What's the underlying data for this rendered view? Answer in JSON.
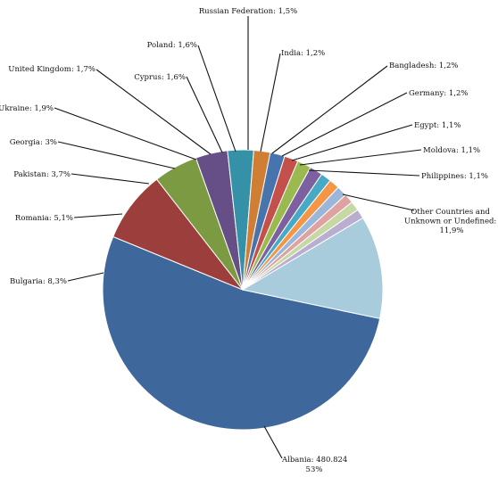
{
  "chart_data": {
    "type": "pie",
    "title": "",
    "slices": [
      {
        "label": "Albania: 480.824",
        "sublabel": "53%",
        "value": 53.0,
        "color": "#3e679b"
      },
      {
        "label": "Bulgaria: 8,3%",
        "value": 8.3,
        "color": "#9c3f3c"
      },
      {
        "label": "Romania: 5,1%",
        "value": 5.1,
        "color": "#7b9a41"
      },
      {
        "label": "Pakistan: 3,7%",
        "value": 3.7,
        "color": "#654f86"
      },
      {
        "label": "Georgia: 3%",
        "value": 3.0,
        "color": "#3591a7"
      },
      {
        "label": "Ukraine: 1,9%",
        "value": 1.9,
        "color": "#d17e35"
      },
      {
        "label": "United Kingdom: 1,7%",
        "value": 1.7,
        "color": "#4874ae"
      },
      {
        "label": "Cyprus: 1,6%",
        "value": 1.6,
        "color": "#c4504c"
      },
      {
        "label": "Poland: 1,6%",
        "value": 1.6,
        "color": "#9ab94f"
      },
      {
        "label": "Russian Federation: 1,5%",
        "value": 1.5,
        "color": "#7c60a0"
      },
      {
        "label": "India: 1,2%",
        "value": 1.2,
        "color": "#46aac6"
      },
      {
        "label": "Bangladesh: 1,2%",
        "value": 1.2,
        "color": "#f59646"
      },
      {
        "label": "Germany: 1,2%",
        "value": 1.2,
        "color": "#9bb6db"
      },
      {
        "label": "Egypt: 1,1%",
        "value": 1.1,
        "color": "#dea3a1"
      },
      {
        "label": "Moldova: 1,1%",
        "value": 1.1,
        "color": "#c6d8a4"
      },
      {
        "label": "Philippines: 1,1%",
        "value": 1.1,
        "color": "#baaed0"
      },
      {
        "label": "Other Countries and Unknown or Undefined: 11,9%",
        "value": 11.9,
        "color": "#a8ccdb"
      }
    ]
  }
}
